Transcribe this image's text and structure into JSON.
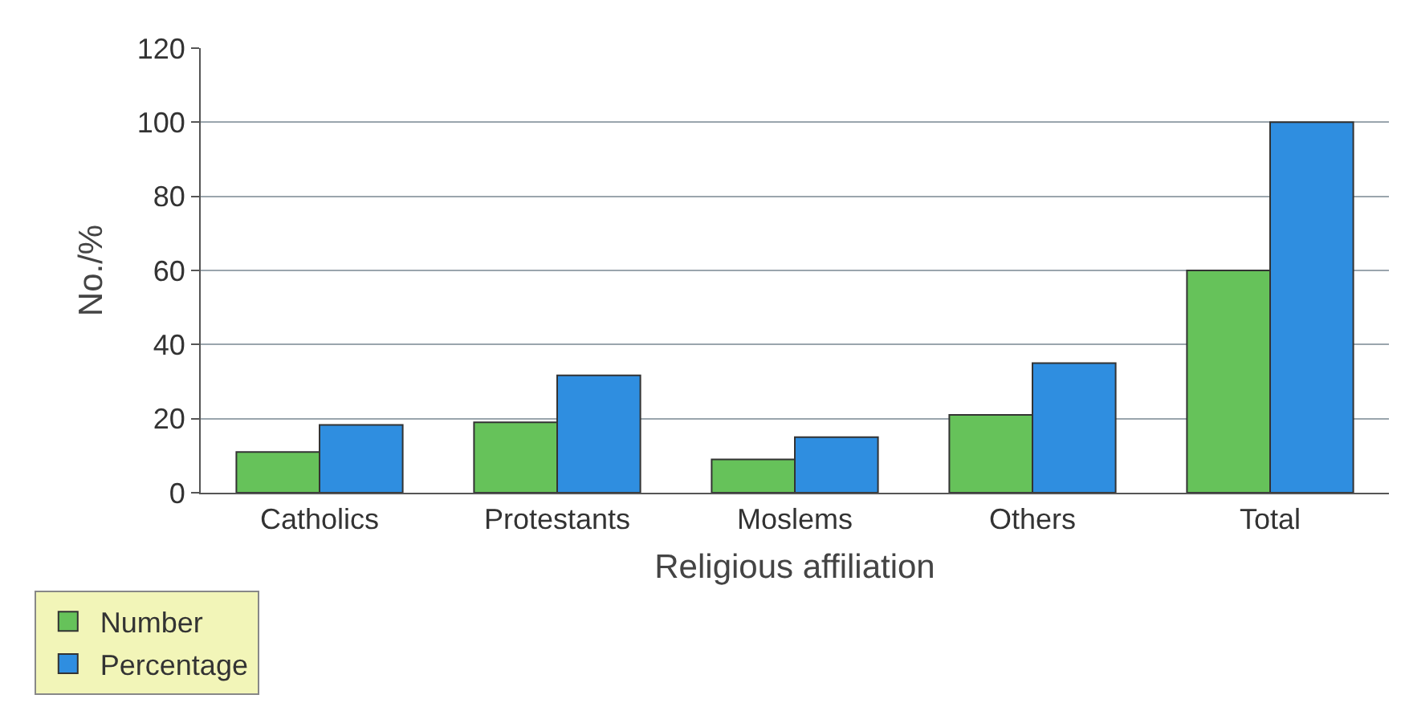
{
  "chart_data": {
    "type": "bar",
    "xlabel": "Religious affiliation",
    "ylabel": "No./%",
    "categories": [
      "Catholics",
      "Protestants",
      "Moslems",
      "Others",
      "Total"
    ],
    "series": [
      {
        "name": "Number",
        "color": "#66c25a",
        "values": [
          11,
          19,
          9,
          21,
          60
        ]
      },
      {
        "name": "Percentage",
        "color": "#2f8ee0",
        "values": [
          18.3,
          31.7,
          15,
          35,
          100
        ]
      }
    ],
    "ylim": [
      0,
      120
    ],
    "yticks": [
      0,
      20,
      40,
      60,
      80,
      100,
      120
    ],
    "grid": "y",
    "legend": "bottom left"
  }
}
